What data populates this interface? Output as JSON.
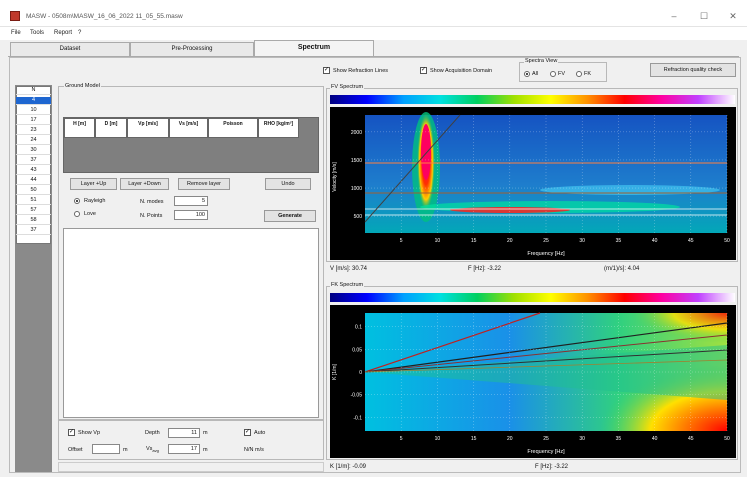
{
  "app": {
    "title": "MASW - 0508m\\MASW_16_06_2022 11_05_55.masw",
    "icon": "masw-app-icon"
  },
  "window": {
    "minimize": "–",
    "maximize": "☐",
    "close": "✕"
  },
  "menu": [
    "File",
    "Tools",
    "Report",
    "?"
  ],
  "tabs": [
    "Dataset",
    "Pre-Processing",
    "Spectrum"
  ],
  "layers": {
    "items": [
      "N",
      "4",
      "10",
      "17",
      "23",
      "24",
      "30",
      "37",
      "43",
      "44",
      "50",
      "51",
      "57",
      "58",
      "37"
    ],
    "selected_index": 1
  },
  "ground_model": {
    "title": "Ground Model",
    "columns": [
      "H [m]",
      "D [m]",
      "Vp [m/s]",
      "Vs [m/s]",
      "Poisson",
      "RHO [kg/m³]"
    ]
  },
  "buttons": {
    "layer_up": "Layer +Up",
    "layer_down": "Layer +Down",
    "remove": "Remove layer",
    "undo": "Undo",
    "generate": "Generate",
    "refraction_check": "Refraction quality check"
  },
  "wave": {
    "rayleigh": "Rayleigh",
    "love": "Love",
    "n_modes_label": "N. modes",
    "n_modes": "5",
    "n_points_label": "N. Points",
    "n_points": "100"
  },
  "bottom": {
    "show_vp": "Show Vp",
    "depth_label": "Depth",
    "depth": "11",
    "depth_unit": "m",
    "auto": "Auto",
    "offset_label": "Offset",
    "offset": "",
    "offset_unit": "m",
    "vs_label": "Vs",
    "vs_sub": "avg",
    "vs_value": "17",
    "vs_unit": "m",
    "nn_label": "N/N m/s"
  },
  "spectrum": {
    "show_refraction": "Show Refraction Lines",
    "show_acquisition": "Show Acquisition Domain",
    "view_title": "Spectra View",
    "view_options": [
      "All",
      "FV",
      "FK"
    ],
    "view_selected": 0
  },
  "fv": {
    "title": "FV Spectrum",
    "ylabel": "Velocity [m/s]",
    "xlabel": "Frequency [Hz]",
    "yticks": [
      "2000",
      "1500",
      "1000",
      "500"
    ],
    "xticks": [
      "5",
      "10",
      "15",
      "20",
      "25",
      "30",
      "35",
      "40",
      "45",
      "50"
    ],
    "readout_v": "V [m/s]: 30.74",
    "readout_f": "F [Hz]: -3.22",
    "readout_vf": "(m/1)/s]: 4.04"
  },
  "fk": {
    "title": "FK Spectrum",
    "ylabel": "K [1/m]",
    "xlabel": "Frequency [Hz]",
    "yticks": [
      "0.1",
      "0.05",
      "0",
      "-0.05",
      "-0.1"
    ],
    "xticks": [
      "5",
      "10",
      "15",
      "20",
      "25",
      "30",
      "35",
      "40",
      "45",
      "50"
    ],
    "readout_k": "K [1/m]: -0.09",
    "readout_f": "F [Hz]: -3.22"
  }
}
